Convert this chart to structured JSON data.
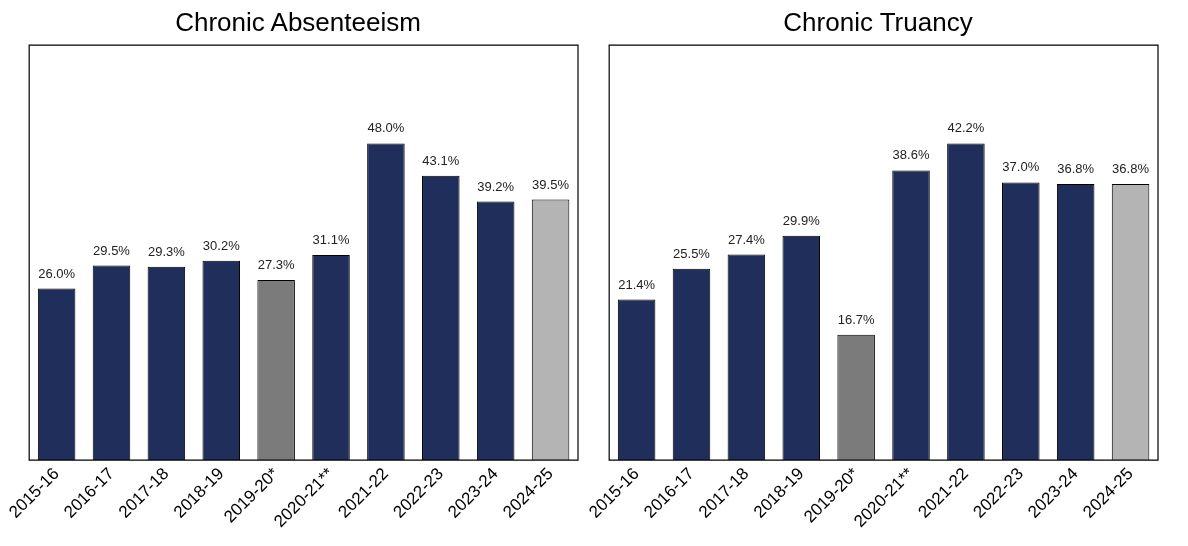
{
  "chart_data": [
    {
      "type": "bar",
      "title": "Chronic Absenteeism",
      "categories": [
        "2015-16",
        "2016-17",
        "2017-18",
        "2018-19",
        "2019-20*",
        "2020-21**",
        "2021-22",
        "2022-23",
        "2023-24",
        "2024-25"
      ],
      "values": [
        26.0,
        29.5,
        29.3,
        30.2,
        27.3,
        31.1,
        48.0,
        43.1,
        39.2,
        39.5
      ],
      "colors": [
        "#1f2e5a",
        "#1f2e5a",
        "#1f2e5a",
        "#1f2e5a",
        "#7b7b7b",
        "#1f2e5a",
        "#1f2e5a",
        "#1f2e5a",
        "#1f2e5a",
        "#b4b4b4"
      ],
      "value_labels": [
        "26.0%",
        "29.5%",
        "29.3%",
        "30.2%",
        "27.3%",
        "31.1%",
        "48.0%",
        "43.1%",
        "39.2%",
        "39.5%"
      ],
      "grid": false,
      "tick_labels": "x"
    },
    {
      "type": "bar",
      "title": "Chronic Truancy",
      "categories": [
        "2015-16",
        "2016-17",
        "2017-18",
        "2018-19",
        "2019-20*",
        "2020-21**",
        "2021-22",
        "2022-23",
        "2023-24",
        "2024-25"
      ],
      "values": [
        21.4,
        25.5,
        27.4,
        29.9,
        16.7,
        38.6,
        42.2,
        37.0,
        36.8,
        36.8
      ],
      "colors": [
        "#1f2e5a",
        "#1f2e5a",
        "#1f2e5a",
        "#1f2e5a",
        "#7b7b7b",
        "#1f2e5a",
        "#1f2e5a",
        "#1f2e5a",
        "#1f2e5a",
        "#b4b4b4"
      ],
      "value_labels": [
        "21.4%",
        "25.5%",
        "27.4%",
        "29.9%",
        "16.7%",
        "38.6%",
        "42.2%",
        "37.0%",
        "36.8%",
        "36.8%"
      ],
      "grid": false,
      "tick_labels": "x"
    }
  ]
}
